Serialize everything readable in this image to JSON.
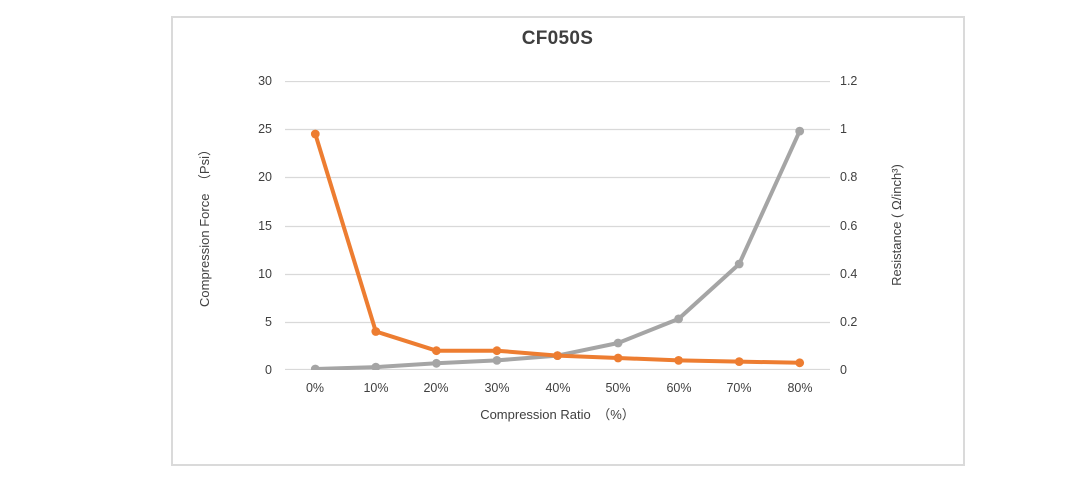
{
  "window": {
    "background": "#ffffff"
  },
  "chart_box": {
    "border_color": "#dadada",
    "background": "#ffffff"
  },
  "chart_data": {
    "type": "line",
    "title": "CF050S",
    "categories": [
      "0%",
      "10%",
      "20%",
      "30%",
      "40%",
      "50%",
      "60%",
      "70%",
      "80%"
    ],
    "series": [
      {
        "name": "Compression Force",
        "axis": "left",
        "color": "#a5a5a5",
        "marker": "circle",
        "values": [
          0.1,
          0.3,
          0.7,
          1.0,
          1.5,
          2.8,
          5.3,
          11.0,
          24.8
        ]
      },
      {
        "name": "Resistance",
        "axis": "right",
        "color": "#ed7d31",
        "marker": "circle",
        "values": [
          0.98,
          0.16,
          0.08,
          0.08,
          0.06,
          0.05,
          0.04,
          0.035,
          0.03
        ]
      }
    ],
    "x_axis": {
      "label": "Compression Ratio　（%）"
    },
    "left_axis": {
      "label": "Compression Force　（Psi）",
      "min": 0,
      "max": 30,
      "tick_labels": [
        "0",
        "5",
        "10",
        "15",
        "20",
        "25",
        "30"
      ]
    },
    "right_axis": {
      "label": "Resistance ( Ω/inch³)",
      "min": 0,
      "max": 1.2,
      "tick_labels": [
        "0",
        "0.2",
        "0.4",
        "0.6",
        "0.8",
        "1",
        "1.2"
      ]
    },
    "gridlines": {
      "color": "#d9d9d9",
      "count": 7
    },
    "legend": "none"
  }
}
